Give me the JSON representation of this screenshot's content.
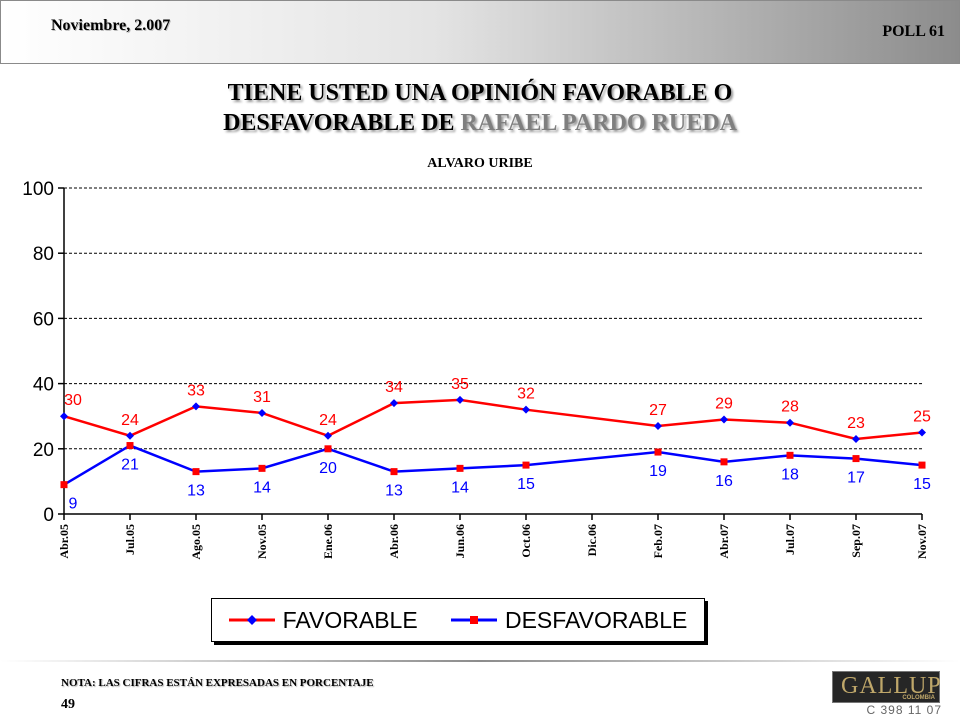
{
  "header": {
    "date": "Noviembre, 2.007",
    "poll": "POLL 61"
  },
  "title": {
    "line1": "TIENE USTED UNA OPINIÓN FAVORABLE O",
    "line2_prefix": "DESFAVORABLE DE ",
    "line2_highlight": "RAFAEL PARDO RUEDA"
  },
  "subtitle": "ALVARO URIBE",
  "colors": {
    "favorable_line": "#ff0000",
    "favorable_marker": "#0000ff",
    "desfavorable_line": "#0000ff",
    "desfavorable_marker": "#ff0000",
    "favorable_label": "#ff0000",
    "desfavorable_label": "#0000ff"
  },
  "chart_data": {
    "type": "line",
    "categories": [
      "Abr.05",
      "Jul.05",
      "Ago.05",
      "Nov.05",
      "Ene.06",
      "Abr.06",
      "Jun.06",
      "Oct.06",
      "Dic.06",
      "Feb.07",
      "Abr.07",
      "Jul.07",
      "Sep.07",
      "Nov.07"
    ],
    "series": [
      {
        "name": "FAVORABLE",
        "values": [
          30,
          24,
          33,
          31,
          24,
          34,
          35,
          32,
          null,
          27,
          29,
          28,
          23,
          25
        ],
        "marker": "diamond"
      },
      {
        "name": "DESFAVORABLE",
        "values": [
          9,
          21,
          13,
          14,
          20,
          13,
          14,
          15,
          null,
          19,
          16,
          18,
          17,
          15
        ],
        "marker": "square"
      }
    ],
    "yticks": [
      0,
      20,
      40,
      60,
      80,
      100
    ],
    "ylim": [
      0,
      100
    ],
    "grid": "horizontal-dashed",
    "legend": "bottom"
  },
  "footer": {
    "note": "NOTA: LAS CIFRAS ESTÁN EXPRESADAS EN PORCENTAJE",
    "page": "49",
    "logo": "GALLUP",
    "logo_sub": "COLOMBIA",
    "code": "C 398 11 07"
  }
}
